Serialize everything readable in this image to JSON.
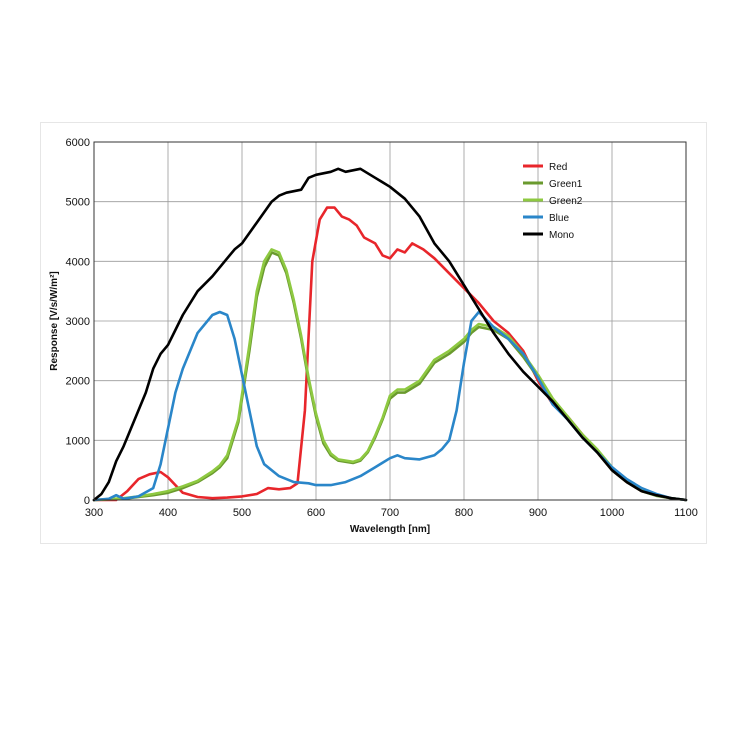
{
  "chart_data": {
    "type": "line",
    "title": "",
    "xlabel": "Wavelength [nm]",
    "ylabel": "Response [V/s/W/m²]",
    "xlim": [
      300,
      1100
    ],
    "ylim": [
      0,
      6000
    ],
    "xticks": [
      300,
      400,
      500,
      600,
      700,
      800,
      900,
      1000,
      1100
    ],
    "yticks": [
      0,
      1000,
      2000,
      3000,
      4000,
      5000,
      6000
    ],
    "grid": true,
    "legend_position": "top-right (inside plot)",
    "series": [
      {
        "name": "Red",
        "color": "#e8262b",
        "x": [
          300,
          330,
          345,
          360,
          375,
          390,
          400,
          410,
          420,
          440,
          460,
          480,
          500,
          520,
          535,
          550,
          565,
          575,
          585,
          595,
          605,
          615,
          625,
          635,
          645,
          655,
          665,
          680,
          690,
          700,
          710,
          720,
          730,
          745,
          760,
          780,
          800,
          820,
          840,
          860,
          880,
          900,
          920,
          940,
          960,
          980,
          1000,
          1020,
          1040,
          1060,
          1080,
          1100
        ],
        "values": [
          0,
          0,
          150,
          350,
          430,
          470,
          380,
          250,
          120,
          50,
          30,
          40,
          60,
          100,
          200,
          180,
          200,
          280,
          1500,
          4000,
          4700,
          4900,
          4900,
          4750,
          4700,
          4600,
          4400,
          4300,
          4100,
          4050,
          4200,
          4150,
          4300,
          4200,
          4050,
          3800,
          3550,
          3300,
          3000,
          2800,
          2500,
          2000,
          1600,
          1400,
          1100,
          800,
          500,
          300,
          150,
          80,
          30,
          0
        ]
      },
      {
        "name": "Green1",
        "color": "#6a9a2e",
        "x": [
          300,
          340,
          360,
          380,
          400,
          420,
          440,
          460,
          470,
          480,
          495,
          510,
          520,
          530,
          540,
          550,
          560,
          570,
          580,
          590,
          600,
          610,
          620,
          630,
          650,
          660,
          670,
          680,
          690,
          700,
          710,
          720,
          740,
          760,
          780,
          800,
          810,
          820,
          840,
          860,
          880,
          900,
          920,
          940,
          960,
          980,
          1000,
          1020,
          1040,
          1060,
          1080,
          1100
        ],
        "values": [
          0,
          20,
          50,
          80,
          120,
          200,
          300,
          450,
          550,
          700,
          1300,
          2500,
          3400,
          3900,
          4150,
          4100,
          3800,
          3300,
          2700,
          2000,
          1400,
          950,
          750,
          660,
          620,
          660,
          800,
          1050,
          1350,
          1700,
          1800,
          1800,
          1950,
          2300,
          2450,
          2650,
          2800,
          2900,
          2850,
          2700,
          2400,
          2050,
          1650,
          1350,
          1050,
          800,
          500,
          300,
          150,
          70,
          30,
          0
        ]
      },
      {
        "name": "Green2",
        "color": "#8ec941",
        "x": [
          300,
          340,
          360,
          380,
          400,
          420,
          440,
          460,
          470,
          480,
          495,
          510,
          520,
          530,
          540,
          550,
          560,
          570,
          580,
          590,
          600,
          610,
          620,
          630,
          650,
          660,
          670,
          680,
          690,
          700,
          710,
          720,
          740,
          760,
          780,
          800,
          810,
          820,
          840,
          860,
          880,
          900,
          920,
          940,
          960,
          980,
          1000,
          1020,
          1040,
          1060,
          1080,
          1100
        ],
        "values": [
          0,
          30,
          60,
          100,
          150,
          230,
          320,
          480,
          580,
          750,
          1350,
          2600,
          3500,
          4000,
          4200,
          4150,
          3850,
          3350,
          2750,
          2050,
          1450,
          1000,
          780,
          680,
          640,
          680,
          820,
          1080,
          1380,
          1750,
          1850,
          1850,
          2000,
          2350,
          2500,
          2700,
          2850,
          2950,
          2900,
          2750,
          2450,
          2100,
          1700,
          1400,
          1100,
          850,
          550,
          320,
          170,
          80,
          30,
          0
        ]
      },
      {
        "name": "Blue",
        "color": "#2a86c9",
        "x": [
          300,
          320,
          330,
          340,
          360,
          380,
          390,
          400,
          410,
          420,
          440,
          460,
          470,
          480,
          490,
          500,
          510,
          520,
          530,
          550,
          570,
          590,
          600,
          620,
          640,
          660,
          680,
          700,
          710,
          720,
          740,
          760,
          770,
          780,
          790,
          800,
          810,
          820,
          840,
          860,
          880,
          900,
          920,
          940,
          960,
          980,
          1000,
          1020,
          1040,
          1060,
          1080,
          1100
        ],
        "values": [
          0,
          20,
          80,
          20,
          60,
          200,
          600,
          1200,
          1800,
          2200,
          2800,
          3100,
          3150,
          3100,
          2700,
          2100,
          1500,
          900,
          600,
          400,
          300,
          280,
          250,
          250,
          300,
          400,
          550,
          700,
          750,
          700,
          680,
          750,
          850,
          1000,
          1500,
          2300,
          3000,
          3150,
          2900,
          2700,
          2450,
          2050,
          1600,
          1350,
          1050,
          800,
          550,
          350,
          200,
          100,
          30,
          0
        ]
      },
      {
        "name": "Mono",
        "color": "#000000",
        "x": [
          300,
          310,
          320,
          330,
          340,
          350,
          360,
          370,
          380,
          390,
          400,
          410,
          420,
          440,
          460,
          480,
          490,
          500,
          520,
          540,
          550,
          560,
          580,
          590,
          600,
          620,
          630,
          640,
          660,
          680,
          700,
          720,
          740,
          760,
          780,
          800,
          820,
          840,
          860,
          880,
          900,
          920,
          940,
          960,
          980,
          1000,
          1020,
          1040,
          1060,
          1080,
          1100
        ],
        "values": [
          0,
          100,
          300,
          650,
          900,
          1200,
          1500,
          1800,
          2200,
          2450,
          2600,
          2850,
          3100,
          3500,
          3750,
          4050,
          4200,
          4300,
          4650,
          5000,
          5100,
          5150,
          5200,
          5400,
          5450,
          5500,
          5550,
          5500,
          5550,
          5400,
          5250,
          5050,
          4750,
          4300,
          4000,
          3600,
          3200,
          2800,
          2450,
          2150,
          1900,
          1650,
          1350,
          1050,
          800,
          500,
          300,
          150,
          80,
          30,
          0
        ]
      }
    ]
  }
}
